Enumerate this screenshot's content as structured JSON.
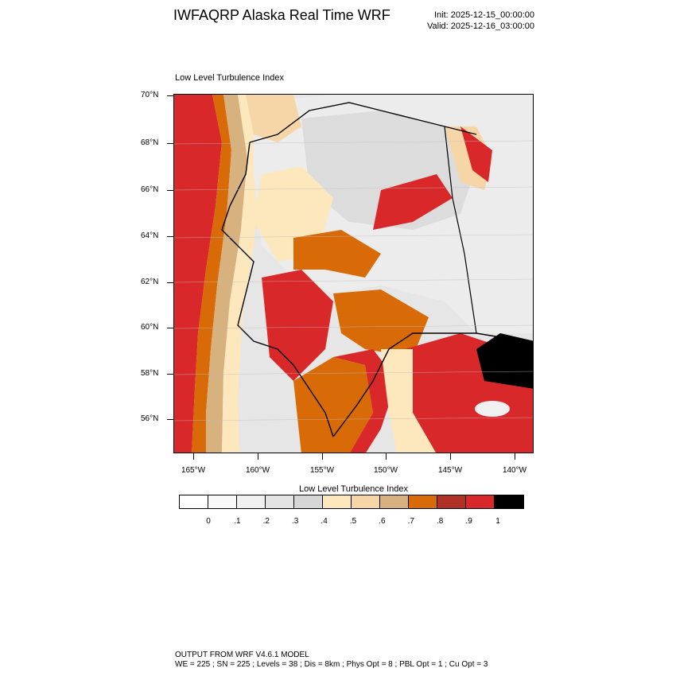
{
  "header": {
    "title": "IWFAQRP Alaska Real Time WRF",
    "init": "Init: 2025-12-15_00:00:00",
    "valid": "Valid: 2025-12-16_03:00:00"
  },
  "plot": {
    "title": "Low Level Turbulence Index",
    "lat_labels": [
      "70°N",
      "68°N",
      "66°N",
      "64°N",
      "62°N",
      "60°N",
      "58°N",
      "56°N"
    ],
    "lon_labels": [
      "165°W",
      "160°W",
      "155°W",
      "150°W",
      "145°W",
      "140°W"
    ]
  },
  "colorbar": {
    "title": "Low Level Turbulence Index",
    "labels": [
      "0",
      ".1",
      ".2",
      ".3",
      ".4",
      ".5",
      ".6",
      ".7",
      ".8",
      ".9",
      "1"
    ],
    "colors": [
      "#ffffff",
      "#f8f8f8",
      "#f0f0f0",
      "#e4e4e4",
      "#d6d6d6",
      "#fde7bc",
      "#f6d6a6",
      "#d7b17e",
      "#d86b08",
      "#b13026",
      "#d9282a",
      "#000000"
    ]
  },
  "footer": {
    "line1": "OUTPUT FROM WRF V4.6.1 MODEL",
    "line2": "WE = 225 ; SN = 225 ; Levels = 38 ; Dis = 8km ; Phys Opt = 8 ; PBL Opt = 1 ; Cu Opt = 3"
  }
}
